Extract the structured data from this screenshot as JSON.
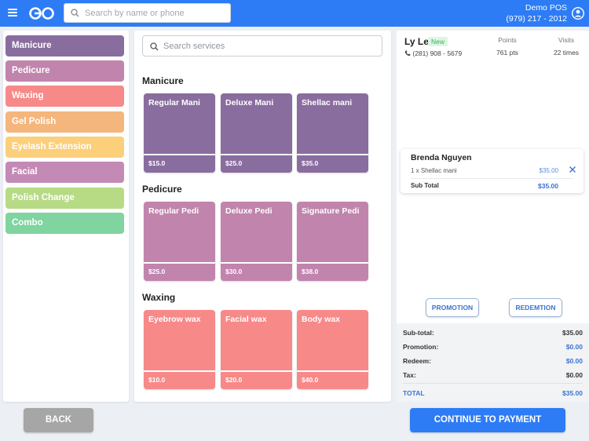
{
  "header": {
    "search_placeholder": "Search by name or phone",
    "store_name": "Demo POS",
    "store_phone": "(979) 217 - 2012",
    "icons": [
      "menu-icon",
      "logo-icon",
      "search-icon",
      "account-icon"
    ]
  },
  "categories": [
    {
      "label": "Manicure",
      "color": "#8a6d9f"
    },
    {
      "label": "Pedicure",
      "color": "#c184ad"
    },
    {
      "label": "Waxing",
      "color": "#f78989"
    },
    {
      "label": "Gel Polish",
      "color": "#f4b67d"
    },
    {
      "label": "Eyelash Extension",
      "color": "#fccf7b"
    },
    {
      "label": "Facial",
      "color": "#c48ab6"
    },
    {
      "label": "Polish Change",
      "color": "#b7da85"
    },
    {
      "label": "Combo",
      "color": "#7fd49f"
    }
  ],
  "services": {
    "search_placeholder": "Search services",
    "sections": [
      {
        "title": "Manicure",
        "color": "#8a6d9f",
        "items": [
          {
            "name": "Regular Mani",
            "price": "$15.0"
          },
          {
            "name": "Deluxe Mani",
            "price": "$25.0"
          },
          {
            "name": "Shellac mani",
            "price": "$35.0"
          }
        ]
      },
      {
        "title": "Pedicure",
        "color": "#c184ad",
        "items": [
          {
            "name": "Regular Pedi",
            "price": "$25.0"
          },
          {
            "name": "Deluxe Pedi",
            "price": "$30.0"
          },
          {
            "name": "Signature Pedi",
            "price": "$38.0"
          }
        ]
      },
      {
        "title": "Waxing",
        "color": "#f78989",
        "items": [
          {
            "name": "Eyebrow wax",
            "price": "$10.0"
          },
          {
            "name": "Facial wax",
            "price": "$20.0"
          },
          {
            "name": "Body wax",
            "price": "$40.0"
          }
        ]
      }
    ]
  },
  "customer": {
    "name": "Ly Le",
    "badge": "New",
    "phone": "(281) 908 - 5679",
    "points_label": "Points",
    "points_value": "761 pts",
    "visits_label": "Visits",
    "visits_value": "22 times"
  },
  "order": {
    "staff": "Brenda Nguyen",
    "line": "1 x Shellac mani",
    "line_price": "$35.00",
    "subtotal_label": "Sub Total",
    "subtotal_value": "$35.00"
  },
  "actions": {
    "promotion": "PROMOTION",
    "redemption": "REDEMTION"
  },
  "totals": [
    {
      "label": "Sub-total:",
      "value": "$35.00",
      "style": "plain"
    },
    {
      "label": "Promotion:",
      "value": "$0.00",
      "style": "blue"
    },
    {
      "label": "Redeem:",
      "value": "$0.00",
      "style": "blue"
    },
    {
      "label": "Tax:",
      "value": "$0.00",
      "style": "plain"
    },
    {
      "label": "TOTAL",
      "value": "$35.00",
      "style": "total"
    }
  ],
  "footer": {
    "back": "BACK",
    "pay": "CONTINUE TO PAYMENT"
  }
}
